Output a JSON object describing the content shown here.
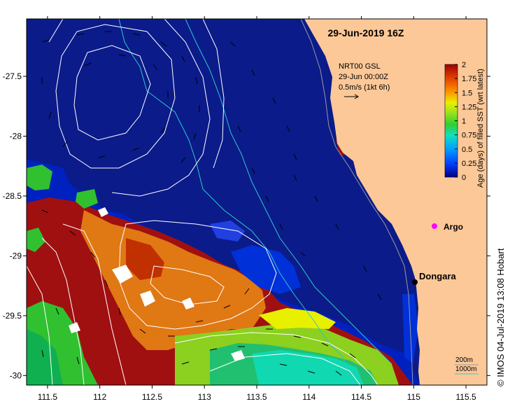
{
  "map": {
    "date_title": "29-Jun-2019 16Z",
    "x_ticks": [
      "111.5",
      "112",
      "112.5",
      "113",
      "113.5",
      "114",
      "114.5",
      "115",
      "115.5"
    ],
    "y_ticks": [
      "-27.5",
      "-28",
      "-28.5",
      "-29",
      "-29.5",
      "-30"
    ],
    "x_range": [
      111.3,
      115.7
    ],
    "y_range": [
      -27.02,
      -30.08
    ],
    "current_legend": {
      "line1": "NRT00 GSL",
      "line2": "29-Jun 00:00Z",
      "line3": "0.5m/s (1kt 6h)"
    },
    "places": {
      "dongara": "Dongara",
      "argo": "Argo"
    },
    "isobath_legend": {
      "line200": "200m",
      "line1000": "1000m"
    },
    "credit": "© IMOS 04-Jul-2019 13:08 Hobart",
    "colors": {
      "land": "#fcc898",
      "ocean_deep": "#0b1b8a",
      "isobath_200": "#9a9a9a",
      "isobath_1000": "#30c8c8",
      "sea_level": "#ffffff",
      "argo": "#ff00ff"
    }
  },
  "colorbar": {
    "title": "Age (days) of filled SST (wrt latest)",
    "ticks": [
      "2",
      "1.75",
      "1.5",
      "1.25",
      "1",
      "0.75",
      "0.5",
      "0.25",
      "0"
    ],
    "colors": [
      "#000080",
      "#0040ff",
      "#00a0ff",
      "#10e0c0",
      "#30d030",
      "#90e020",
      "#e8f000",
      "#ff9000",
      "#e04000",
      "#a00000"
    ]
  }
}
